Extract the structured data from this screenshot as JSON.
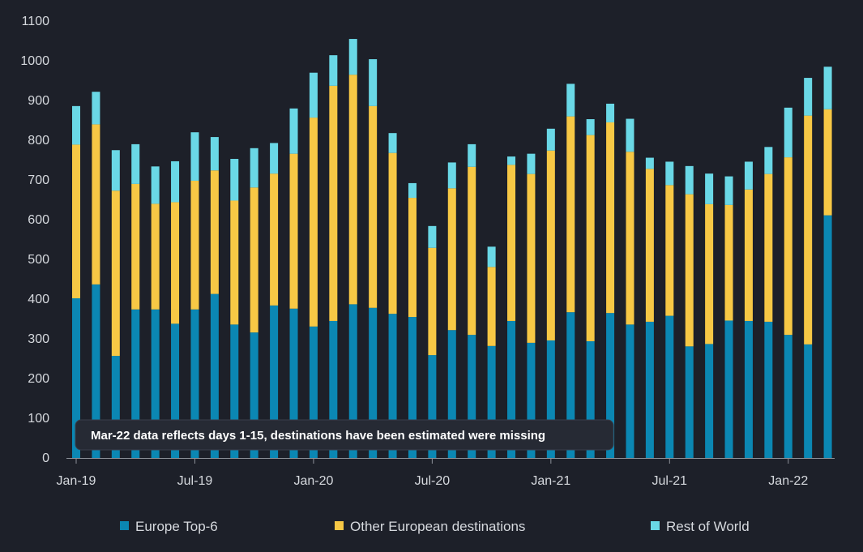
{
  "chart_data": {
    "type": "bar",
    "stacked": true,
    "title": "",
    "xlabel": "",
    "ylabel": "",
    "ylim": [
      0,
      1100
    ],
    "yticks": [
      0,
      100,
      200,
      300,
      400,
      500,
      600,
      700,
      800,
      900,
      1000,
      1100
    ],
    "grid": false,
    "legend_position": "bottom",
    "categories": [
      "Jan-19",
      "Feb-19",
      "Mar-19",
      "Apr-19",
      "May-19",
      "Jun-19",
      "Jul-19",
      "Aug-19",
      "Sep-19",
      "Oct-19",
      "Nov-19",
      "Dec-19",
      "Jan-20",
      "Feb-20",
      "Mar-20",
      "Apr-20",
      "May-20",
      "Jun-20",
      "Jul-20",
      "Aug-20",
      "Sep-20",
      "Oct-20",
      "Nov-20",
      "Dec-20",
      "Jan-21",
      "Feb-21",
      "Mar-21",
      "Apr-21",
      "May-21",
      "Jun-21",
      "Jul-21",
      "Aug-21",
      "Sep-21",
      "Oct-21",
      "Nov-21",
      "Dec-21",
      "Jan-22",
      "Feb-22",
      "Mar-22"
    ],
    "xtick_labels": [
      {
        "index": 0,
        "label": "Jan-19"
      },
      {
        "index": 6,
        "label": "Jul-19"
      },
      {
        "index": 12,
        "label": "Jan-20"
      },
      {
        "index": 18,
        "label": "Jul-20"
      },
      {
        "index": 24,
        "label": "Jan-21"
      },
      {
        "index": 30,
        "label": "Jul-21"
      },
      {
        "index": 36,
        "label": "Jan-22"
      }
    ],
    "series": [
      {
        "name": "Europe Top-6",
        "color": "#0b87b3",
        "values": [
          402,
          437,
          257,
          374,
          374,
          338,
          374,
          413,
          336,
          316,
          384,
          376,
          331,
          345,
          387,
          378,
          363,
          355,
          259,
          322,
          310,
          282,
          345,
          290,
          296,
          367,
          294,
          365,
          336,
          343,
          358,
          281,
          287,
          346,
          345,
          343,
          310,
          286,
          611
        ]
      },
      {
        "name": "Other European destinations",
        "color": "#f7c845",
        "values": [
          387,
          403,
          416,
          316,
          266,
          306,
          324,
          311,
          312,
          365,
          332,
          390,
          526,
          592,
          578,
          508,
          405,
          300,
          270,
          357,
          423,
          199,
          393,
          425,
          478,
          493,
          519,
          480,
          435,
          385,
          329,
          383,
          352,
          291,
          331,
          372,
          447,
          576,
          267
        ]
      },
      {
        "name": "Rest of World",
        "color": "#6ad8e6",
        "values": [
          97,
          82,
          102,
          100,
          94,
          103,
          122,
          84,
          105,
          99,
          77,
          114,
          113,
          77,
          90,
          118,
          50,
          37,
          55,
          65,
          57,
          51,
          21,
          51,
          55,
          82,
          40,
          47,
          83,
          28,
          59,
          71,
          77,
          72,
          70,
          68,
          125,
          95,
          107
        ]
      }
    ],
    "annotation": "Mar-22 data reflects days 1-15, destinations have been estimated were missing"
  }
}
